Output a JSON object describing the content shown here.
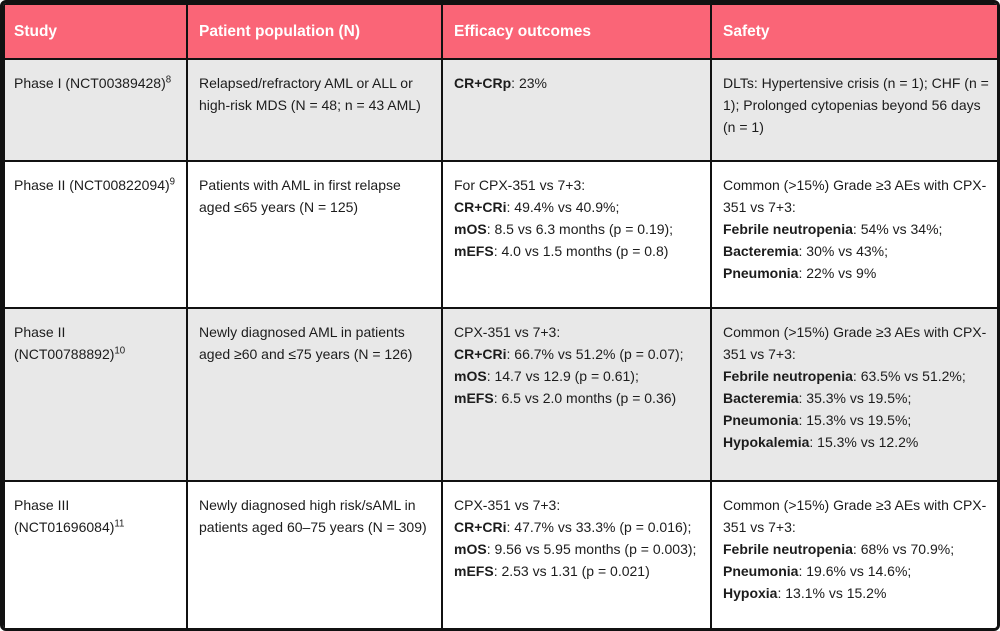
{
  "colors": {
    "header_bg": "#FA6577",
    "header_text": "#FFFFFF",
    "row_shade": "#E8E8E8",
    "border": "#111111",
    "text": "#1C1C1C"
  },
  "table": {
    "columns": [
      "Study",
      "Patient population (N)",
      "Efficacy outcomes",
      "Safety"
    ],
    "rows": [
      {
        "study": {
          "text": "Phase I (NCT00389428)",
          "ref": "8"
        },
        "population": "Relapsed/refractory AML or ALL or high-risk MDS (N = 48; n = 43 AML)",
        "efficacy": [
          [
            {
              "t": "CR+CRp",
              "b": true
            },
            {
              "t": ": 23%",
              "b": false
            }
          ]
        ],
        "safety": [
          [
            {
              "t": "DLTs: Hypertensive crisis (n = 1); CHF (n = 1); Prolonged cytopenias beyond 56 days (n = 1)",
              "b": false
            }
          ]
        ]
      },
      {
        "study": {
          "text": "Phase II (NCT00822094)",
          "ref": "9"
        },
        "population": "Patients with AML in first relapse aged ≤65 years (N = 125)",
        "efficacy": [
          [
            {
              "t": "For CPX-351 vs 7+3:",
              "b": false
            }
          ],
          [
            {
              "t": "CR+CRi",
              "b": true
            },
            {
              "t": ": 49.4% vs 40.9%;",
              "b": false
            }
          ],
          [
            {
              "t": "mOS",
              "b": true
            },
            {
              "t": ": 8.5 vs 6.3 months (p = 0.19);",
              "b": false
            }
          ],
          [
            {
              "t": "mEFS",
              "b": true
            },
            {
              "t": ": 4.0 vs 1.5 months (p = 0.8)",
              "b": false
            }
          ]
        ],
        "safety": [
          [
            {
              "t": "Common (>15%) Grade ≥3 AEs with CPX-351 vs 7+3:",
              "b": false
            }
          ],
          [
            {
              "t": "Febrile neutropenia",
              "b": true
            },
            {
              "t": ": 54% vs 34%;",
              "b": false
            }
          ],
          [
            {
              "t": "Bacteremia",
              "b": true
            },
            {
              "t": ": 30% vs 43%;",
              "b": false
            }
          ],
          [
            {
              "t": "Pneumonia",
              "b": true
            },
            {
              "t": ": 22% vs 9%",
              "b": false
            }
          ]
        ]
      },
      {
        "study": {
          "text": "Phase II (NCT00788892)",
          "ref": "10"
        },
        "population": "Newly diagnosed AML in patients aged ≥60 and ≤75 years (N = 126)",
        "efficacy": [
          [
            {
              "t": "CPX-351 vs 7+3:",
              "b": false
            }
          ],
          [
            {
              "t": "CR+CRi",
              "b": true
            },
            {
              "t": ": 66.7% vs 51.2% (p = 0.07);",
              "b": false
            }
          ],
          [
            {
              "t": "mOS",
              "b": true
            },
            {
              "t": ": 14.7 vs 12.9 (p = 0.61);",
              "b": false
            }
          ],
          [
            {
              "t": "mEFS",
              "b": true
            },
            {
              "t": ": 6.5 vs 2.0 months (p = 0.36)",
              "b": false
            }
          ]
        ],
        "safety": [
          [
            {
              "t": "Common (>15%) Grade ≥3 AEs with CPX-351 vs 7+3:",
              "b": false
            }
          ],
          [
            {
              "t": "Febrile neutropenia",
              "b": true
            },
            {
              "t": ": 63.5% vs 51.2%;",
              "b": false
            }
          ],
          [
            {
              "t": "Bacteremia",
              "b": true
            },
            {
              "t": ": 35.3% vs 19.5%;",
              "b": false
            }
          ],
          [
            {
              "t": "Pneumonia",
              "b": true
            },
            {
              "t": ": 15.3% vs 19.5%;",
              "b": false
            }
          ],
          [
            {
              "t": "Hypokalemia",
              "b": true
            },
            {
              "t": ": 15.3% vs 12.2%",
              "b": false
            }
          ]
        ]
      },
      {
        "study": {
          "text": "Phase III (NCT01696084)",
          "ref": "11"
        },
        "population": "Newly diagnosed high risk/sAML in patients aged 60–75 years (N = 309)",
        "efficacy": [
          [
            {
              "t": "CPX-351 vs 7+3:",
              "b": false
            }
          ],
          [
            {
              "t": "CR+CRi",
              "b": true
            },
            {
              "t": ": 47.7% vs 33.3% (p = 0.016);",
              "b": false
            }
          ],
          [
            {
              "t": "mOS",
              "b": true
            },
            {
              "t": ": 9.56 vs 5.95 months (p = 0.003);",
              "b": false
            }
          ],
          [
            {
              "t": "mEFS",
              "b": true
            },
            {
              "t": ": 2.53 vs 1.31 (p = 0.021)",
              "b": false
            }
          ]
        ],
        "safety": [
          [
            {
              "t": "Common (>15%) Grade ≥3 AEs with CPX-351 vs 7+3:",
              "b": false
            }
          ],
          [
            {
              "t": "Febrile neutropenia",
              "b": true
            },
            {
              "t": ": 68% vs 70.9%;",
              "b": false
            }
          ],
          [
            {
              "t": "Pneumonia",
              "b": true
            },
            {
              "t": ": 19.6% vs 14.6%;",
              "b": false
            }
          ],
          [
            {
              "t": "Hypoxia",
              "b": true
            },
            {
              "t": ": 13.1% vs 15.2%",
              "b": false
            }
          ]
        ]
      }
    ]
  }
}
